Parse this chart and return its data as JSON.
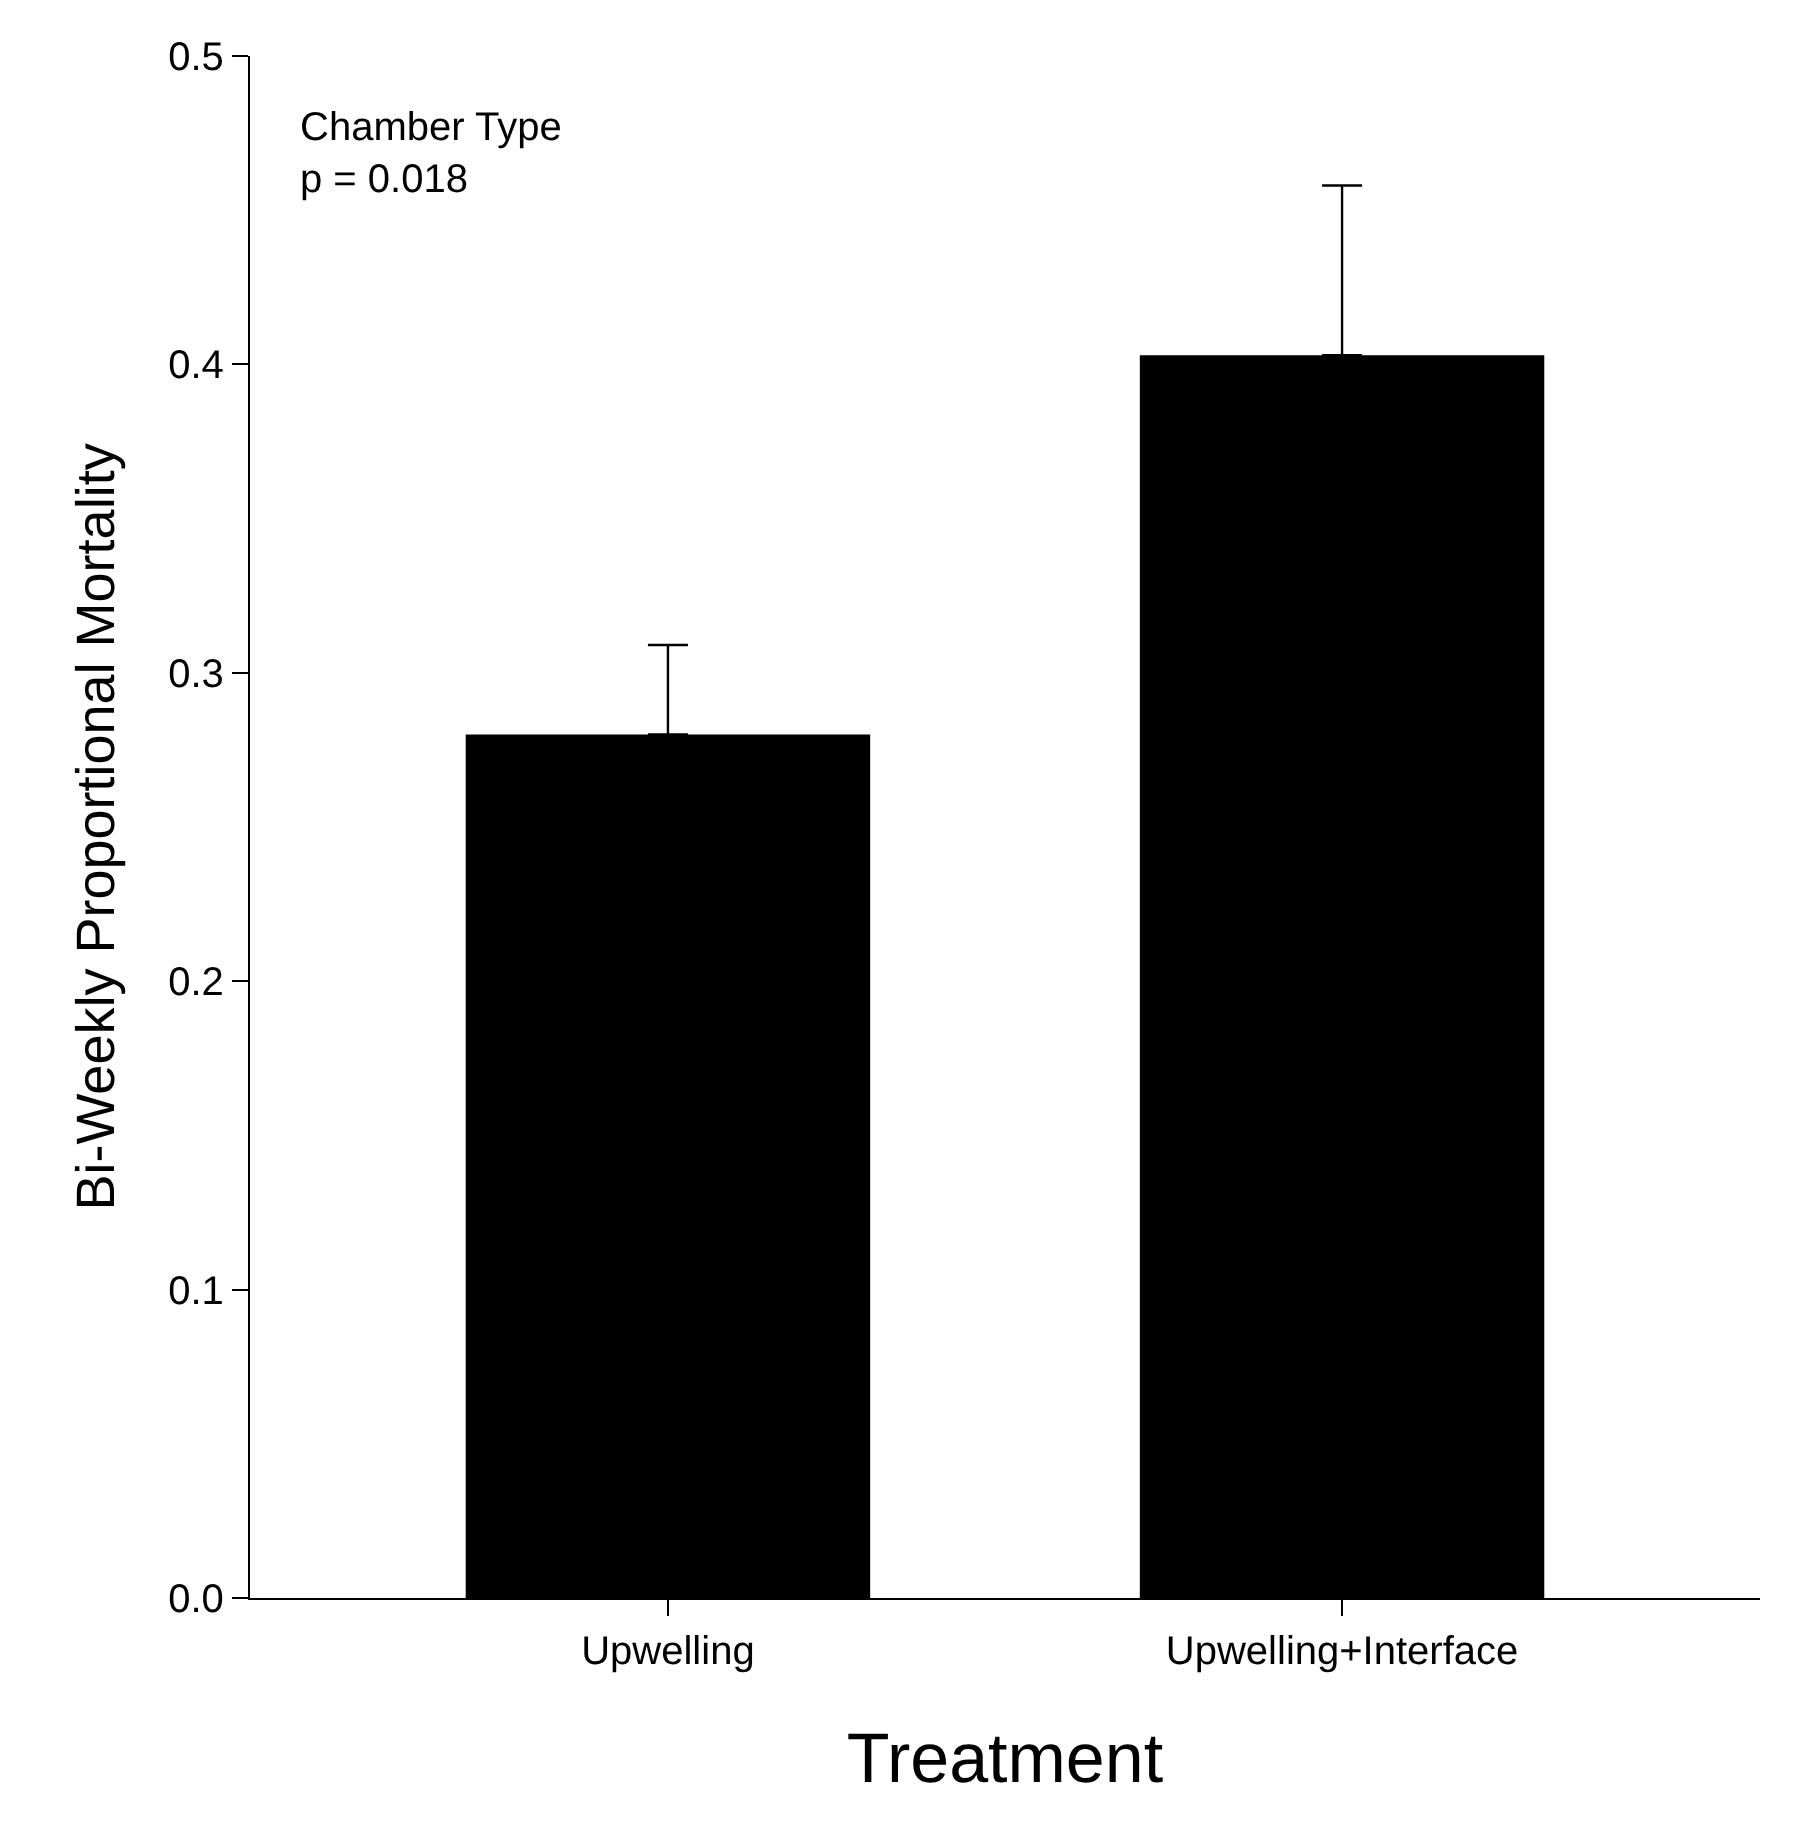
{
  "chart_data": {
    "type": "bar",
    "xlabel": "Treatment",
    "ylabel": "Bi-Weekly Proportional Mortality",
    "categories": [
      "Upwelling",
      "Upwelling+Interface"
    ],
    "series": [
      {
        "color": "#000000",
        "values": [
          0.28,
          0.403
        ],
        "errors": [
          [
            0.28,
            0.309
          ],
          [
            0.403,
            0.458
          ]
        ]
      }
    ],
    "ylim": [
      0,
      0.5
    ],
    "yticks": [
      {
        "value": 0,
        "label": "0.0"
      },
      0.1,
      0.2,
      0.3,
      0.4,
      0.5
    ],
    "annotations": [
      "Chamber Type\np = 0.018"
    ]
  }
}
